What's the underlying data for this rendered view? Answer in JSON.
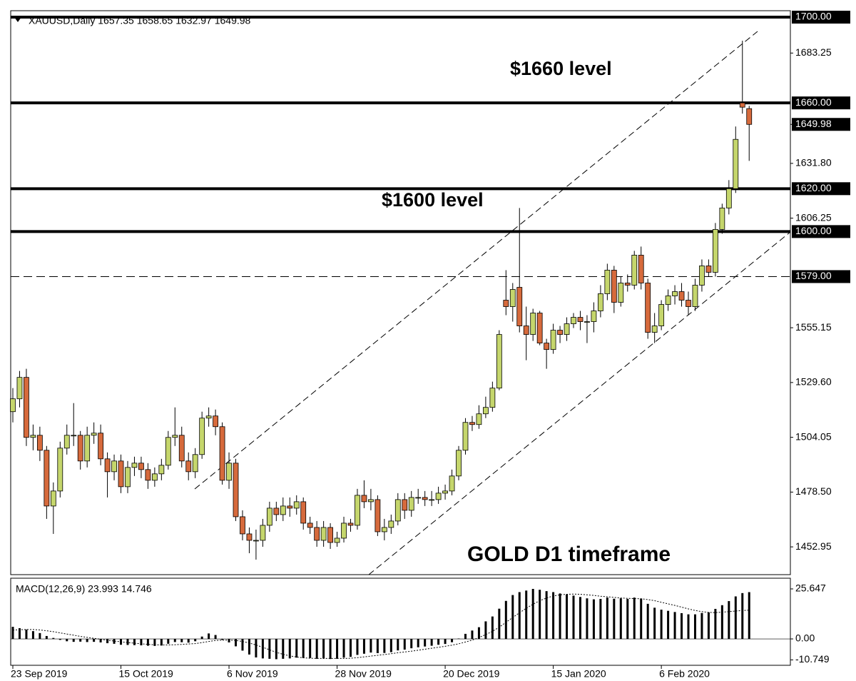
{
  "chart_data": [
    {
      "type": "candlestick",
      "title": "XAUUSD,Daily  1657.35 1658.65 1632.97 1649.98",
      "categories": [
        "23 Sep 2019",
        null,
        null,
        null,
        null,
        null,
        null,
        null,
        null,
        null,
        null,
        null,
        null,
        null,
        null,
        null,
        "15 Oct 2019",
        null,
        null,
        null,
        null,
        null,
        null,
        null,
        null,
        null,
        null,
        null,
        null,
        null,
        null,
        null,
        "6 Nov 2019",
        null,
        null,
        null,
        null,
        null,
        null,
        null,
        null,
        null,
        null,
        null,
        null,
        null,
        null,
        null,
        "28 Nov 2019",
        null,
        null,
        null,
        null,
        null,
        null,
        null,
        null,
        null,
        null,
        null,
        null,
        null,
        null,
        null,
        "20 Dec 2019",
        null,
        null,
        null,
        null,
        null,
        null,
        null,
        null,
        null,
        null,
        null,
        null,
        null,
        null,
        null,
        "15 Jan 2020",
        null,
        null,
        null,
        null,
        null,
        null,
        null,
        null,
        null,
        null,
        null,
        null,
        null,
        null,
        null,
        "6 Feb 2020",
        null,
        null,
        null,
        null,
        null,
        null,
        null,
        null,
        null,
        null,
        null,
        null,
        null
      ],
      "open": [
        1516,
        1522,
        1532,
        1504,
        1505,
        1498,
        1472,
        1479,
        1499,
        1505,
        1505,
        1493,
        1505,
        1506,
        1494,
        1488,
        1493,
        1481,
        1490,
        1492,
        1489,
        1484,
        1487,
        1491,
        1504,
        1505,
        1493,
        1488,
        1496,
        1513,
        1514,
        1509,
        1484,
        1492,
        1467,
        1459,
        1456,
        1456,
        1463,
        1471,
        1468,
        1472,
        1471,
        1474,
        1464,
        1462,
        1456,
        1462,
        1455,
        1457,
        1464,
        1463,
        1477,
        1474,
        1475,
        1460,
        1462,
        1465,
        1475,
        1470,
        1476,
        1476,
        1475,
        1475,
        1478,
        1479,
        1486,
        1498,
        1511,
        1510,
        1515,
        1518,
        1527,
        1568,
        1565,
        1574,
        1556,
        1552,
        1562,
        1548,
        1545,
        1554,
        1552,
        1557,
        1560,
        1558,
        1558,
        1563,
        1571,
        1582,
        1567,
        1576,
        1575,
        1589,
        1576,
        1553,
        1556,
        1566,
        1570,
        1572,
        1568,
        1565,
        1575,
        1584,
        1581,
        1601,
        1611,
        1620,
        1660,
        1657.35
      ],
      "high": [
        1527,
        1535,
        1536,
        1510,
        1509,
        1500,
        1483,
        1502,
        1510,
        1520,
        1507,
        1509,
        1511,
        1510,
        1497,
        1496,
        1496,
        1493,
        1495,
        1495,
        1492,
        1490,
        1494,
        1507,
        1518,
        1509,
        1497,
        1499,
        1516,
        1518,
        1517,
        1511,
        1497,
        1494,
        1470,
        1462,
        1461,
        1466,
        1474,
        1474,
        1476,
        1476,
        1477,
        1476,
        1467,
        1465,
        1465,
        1464,
        1460,
        1467,
        1466,
        1480,
        1484,
        1480,
        1477,
        1466,
        1468,
        1478,
        1478,
        1479,
        1480,
        1479,
        1479,
        1481,
        1482,
        1489,
        1500,
        1513,
        1514,
        1519,
        1523,
        1530,
        1554,
        1582,
        1576,
        1611,
        1565,
        1564,
        1563,
        1550,
        1557,
        1556,
        1560,
        1562,
        1563,
        1561,
        1567,
        1575,
        1585,
        1584,
        1579,
        1580,
        1591,
        1593,
        1578,
        1562,
        1568,
        1573,
        1575,
        1576,
        1572,
        1578,
        1587,
        1587,
        1604,
        1613,
        1624,
        1649,
        1689,
        1658.65
      ],
      "low": [
        1511,
        1518,
        1500,
        1498,
        1493,
        1466,
        1459,
        1476,
        1496,
        1500,
        1489,
        1490,
        1501,
        1491,
        1476,
        1484,
        1478,
        1478,
        1486,
        1485,
        1480,
        1481,
        1484,
        1489,
        1500,
        1490,
        1484,
        1485,
        1494,
        1509,
        1505,
        1482,
        1480,
        1465,
        1456,
        1450,
        1447,
        1453,
        1460,
        1465,
        1465,
        1467,
        1468,
        1461,
        1459,
        1453,
        1453,
        1452,
        1453,
        1455,
        1460,
        1461,
        1471,
        1470,
        1458,
        1456,
        1459,
        1463,
        1466,
        1467,
        1473,
        1472,
        1472,
        1473,
        1475,
        1477,
        1484,
        1496,
        1507,
        1508,
        1513,
        1516,
        1526,
        1561,
        1558,
        1553,
        1540,
        1549,
        1547,
        1536,
        1543,
        1548,
        1549,
        1555,
        1554,
        1548,
        1553,
        1560,
        1568,
        1562,
        1565,
        1572,
        1573,
        1573,
        1550,
        1548,
        1554,
        1563,
        1566,
        1565,
        1561,
        1563,
        1572,
        1579,
        1579,
        1599,
        1608,
        1618,
        1655,
        1632.97
      ],
      "close": [
        1522,
        1532,
        1504,
        1505,
        1498,
        1472,
        1479,
        1499,
        1505,
        1505,
        1493,
        1505,
        1506,
        1494,
        1488,
        1493,
        1481,
        1490,
        1492,
        1489,
        1484,
        1487,
        1491,
        1504,
        1505,
        1493,
        1488,
        1496,
        1513,
        1514,
        1509,
        1484,
        1492,
        1467,
        1459,
        1456,
        1456,
        1463,
        1471,
        1468,
        1472,
        1471,
        1474,
        1464,
        1462,
        1456,
        1462,
        1455,
        1457,
        1464,
        1463,
        1477,
        1474,
        1475,
        1460,
        1462,
        1465,
        1475,
        1470,
        1476,
        1476,
        1475,
        1475,
        1478,
        1479,
        1486,
        1498,
        1511,
        1510,
        1515,
        1518,
        1527,
        1552,
        1565,
        1573,
        1556,
        1552,
        1562,
        1548,
        1545,
        1554,
        1552,
        1557,
        1560,
        1558,
        1558,
        1563,
        1571,
        1582,
        1567,
        1576,
        1575,
        1589,
        1576,
        1553,
        1556,
        1566,
        1570,
        1572,
        1568,
        1565,
        1575,
        1584,
        1581,
        1601,
        1611,
        1620,
        1643,
        1658,
        1649.98
      ],
      "up_color": "#c5d66c",
      "down_color": "#d66a3c",
      "ylim": [
        1440,
        1703
      ],
      "yticks": [
        {
          "value": 1683.25,
          "label": "1683.25"
        },
        {
          "value": 1631.8,
          "label": "1631.80"
        },
        {
          "value": 1606.25,
          "label": "1606.25"
        },
        {
          "value": 1555.15,
          "label": "1555.15"
        },
        {
          "value": 1529.6,
          "label": "1529.60"
        },
        {
          "value": 1504.05,
          "label": "1504.05"
        },
        {
          "value": 1478.5,
          "label": "1478.50"
        },
        {
          "value": 1452.95,
          "label": "1452.95"
        }
      ],
      "levels": [
        {
          "value": 1700,
          "label": "1700.00"
        },
        {
          "value": 1660,
          "label": "1660.00"
        },
        {
          "value": 1620,
          "label": "1620.00"
        },
        {
          "value": 1600,
          "label": "1600.00"
        }
      ],
      "dashed_levels": [
        {
          "value": 1579,
          "label": "1579.00"
        }
      ],
      "current_price": {
        "value": 1649.98,
        "label": "1649.98"
      },
      "annotations": [
        "$1660 level",
        "$1600 level",
        "GOLD D1 timeframe"
      ]
    },
    {
      "type": "bar",
      "title": "MACD(12,26,9) 23.993 14.746",
      "color": "#000000",
      "values": [
        6.2,
        5.5,
        4.8,
        4.0,
        3.0,
        1.5,
        0.5,
        -0.5,
        -1.2,
        -1.5,
        -1.4,
        -1.6,
        -1.5,
        -1.8,
        -2.2,
        -2.5,
        -3.0,
        -3.1,
        -3.2,
        -3.3,
        -3.5,
        -3.6,
        -3.4,
        -2.5,
        -1.6,
        -1.7,
        -1.9,
        -1.2,
        1.2,
        2.8,
        2.0,
        -0.5,
        -1.8,
        -3.8,
        -6.0,
        -8.0,
        -9.5,
        -10.0,
        -10.2,
        -10.4,
        -10.2,
        -10.0,
        -9.6,
        -9.8,
        -9.8,
        -10.2,
        -10.0,
        -10.3,
        -10.2,
        -9.6,
        -9.2,
        -8.2,
        -7.6,
        -7.0,
        -7.3,
        -7.2,
        -6.8,
        -5.9,
        -5.5,
        -4.8,
        -4.3,
        -3.9,
        -3.5,
        -3.0,
        -2.6,
        -1.7,
        0.2,
        2.6,
        4.3,
        6.0,
        9.0,
        11.5,
        15.5,
        19.5,
        22.5,
        24.0,
        24.8,
        25.647,
        25.2,
        24.5,
        24.0,
        23.3,
        22.8,
        22.2,
        21.5,
        20.8,
        20.3,
        20.5,
        21.2,
        20.6,
        20.8,
        20.5,
        21.2,
        20.7,
        18.0,
        16.0,
        15.0,
        14.4,
        13.8,
        13.2,
        12.6,
        12.6,
        13.3,
        13.6,
        15.4,
        17.3,
        19.4,
        21.8,
        23.5,
        23.993
      ],
      "signal": [
        4.5,
        4.7,
        4.8,
        4.8,
        4.6,
        4.2,
        3.7,
        3.1,
        2.5,
        1.9,
        1.3,
        0.8,
        0.3,
        -0.2,
        -0.7,
        -1.1,
        -1.5,
        -1.9,
        -2.2,
        -2.5,
        -2.8,
        -3.0,
        -3.1,
        -3.1,
        -3.0,
        -2.8,
        -2.6,
        -2.4,
        -1.9,
        -1.3,
        -0.8,
        -0.6,
        -0.6,
        -0.8,
        -1.3,
        -2.1,
        -3.1,
        -4.3,
        -5.6,
        -6.9,
        -7.9,
        -8.7,
        -9.3,
        -9.7,
        -9.9,
        -10.0,
        -10.0,
        -10.0,
        -10.0,
        -10.0,
        -9.9,
        -9.6,
        -9.2,
        -8.8,
        -8.4,
        -8.0,
        -7.6,
        -7.1,
        -6.7,
        -6.3,
        -5.8,
        -5.3,
        -4.8,
        -4.3,
        -3.8,
        -3.2,
        -2.5,
        -1.6,
        -0.6,
        0.7,
        2.2,
        3.9,
        6.0,
        8.5,
        11.0,
        13.4,
        15.7,
        17.8,
        19.6,
        21.0,
        22.0,
        22.6,
        22.9,
        23.0,
        22.9,
        22.6,
        22.3,
        21.9,
        21.6,
        21.3,
        21.0,
        20.8,
        20.7,
        20.6,
        20.2,
        19.6,
        18.8,
        18.0,
        17.2,
        16.3,
        15.4,
        14.6,
        14.0,
        13.6,
        13.5,
        13.7,
        14.0,
        14.3,
        14.6,
        14.746
      ],
      "ylim": [
        -12.8,
        30.4
      ],
      "yticks": [
        25.647,
        {
          "value": 0,
          "label": "0.00"
        },
        -10.749
      ]
    }
  ]
}
